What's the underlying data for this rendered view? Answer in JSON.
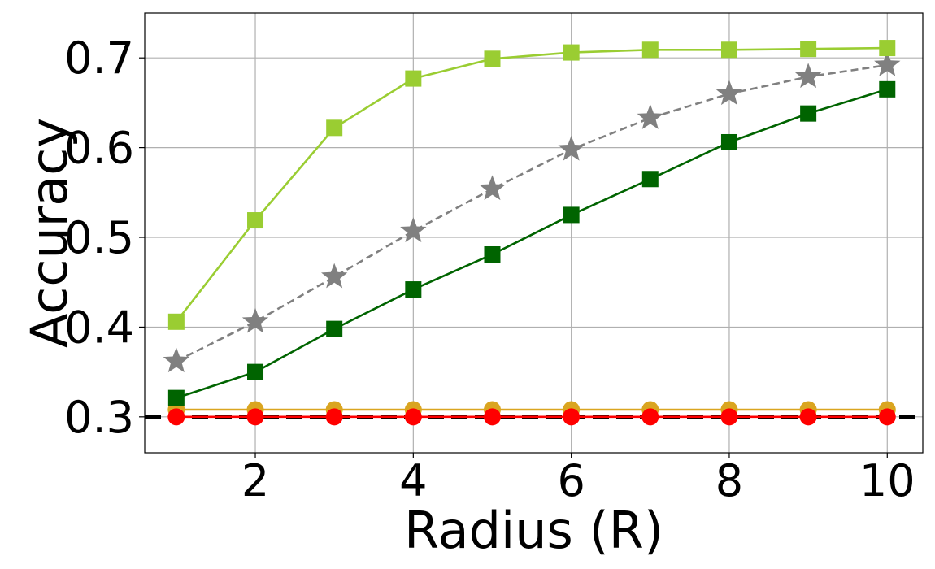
{
  "chart_data": {
    "type": "line",
    "title": "",
    "xlabel": "Radius (R)",
    "ylabel": "Accuracy",
    "xlim": [
      0.6,
      10.45
    ],
    "ylim": [
      0.26,
      0.75
    ],
    "xticks": [
      2,
      4,
      6,
      8,
      10
    ],
    "xtick_labels": [
      "2",
      "4",
      "6",
      "8",
      "10"
    ],
    "yticks": [
      0.3,
      0.4,
      0.5,
      0.6,
      0.7
    ],
    "ytick_labels": [
      "0.3",
      "0.4",
      "0.5",
      "0.6",
      "0.7"
    ],
    "grid": true,
    "legend": "none",
    "x": [
      1,
      2,
      3,
      4,
      5,
      6,
      7,
      8,
      9,
      10
    ],
    "series": [
      {
        "values": [
          0.406,
          0.519,
          0.622,
          0.677,
          0.699,
          0.706,
          0.709,
          0.709,
          0.71,
          0.711
        ],
        "color": "#9acd32",
        "marker": "square",
        "dash": "solid"
      },
      {
        "values": [
          0.362,
          0.406,
          0.456,
          0.507,
          0.554,
          0.598,
          0.633,
          0.66,
          0.679,
          0.692
        ],
        "color": "#808080",
        "marker": "star",
        "dash": "dashed"
      },
      {
        "values": [
          0.321,
          0.35,
          0.398,
          0.442,
          0.481,
          0.525,
          0.565,
          0.606,
          0.638,
          0.665
        ],
        "color": "#006400",
        "marker": "square",
        "dash": "solid"
      },
      {
        "values": [
          0.308,
          0.308,
          0.308,
          0.308,
          0.308,
          0.308,
          0.308,
          0.308,
          0.308,
          0.308
        ],
        "color": "#daa520",
        "marker": "circle",
        "dash": "solid"
      },
      {
        "values": [
          0.3,
          0.3,
          0.3,
          0.3,
          0.3,
          0.3,
          0.3,
          0.3,
          0.3,
          0.3
        ],
        "color": "#ff0000",
        "marker": "circle",
        "dash": "solid"
      }
    ],
    "reference_line": {
      "y": 0.3,
      "color": "#000000",
      "dash": "dashed"
    }
  }
}
